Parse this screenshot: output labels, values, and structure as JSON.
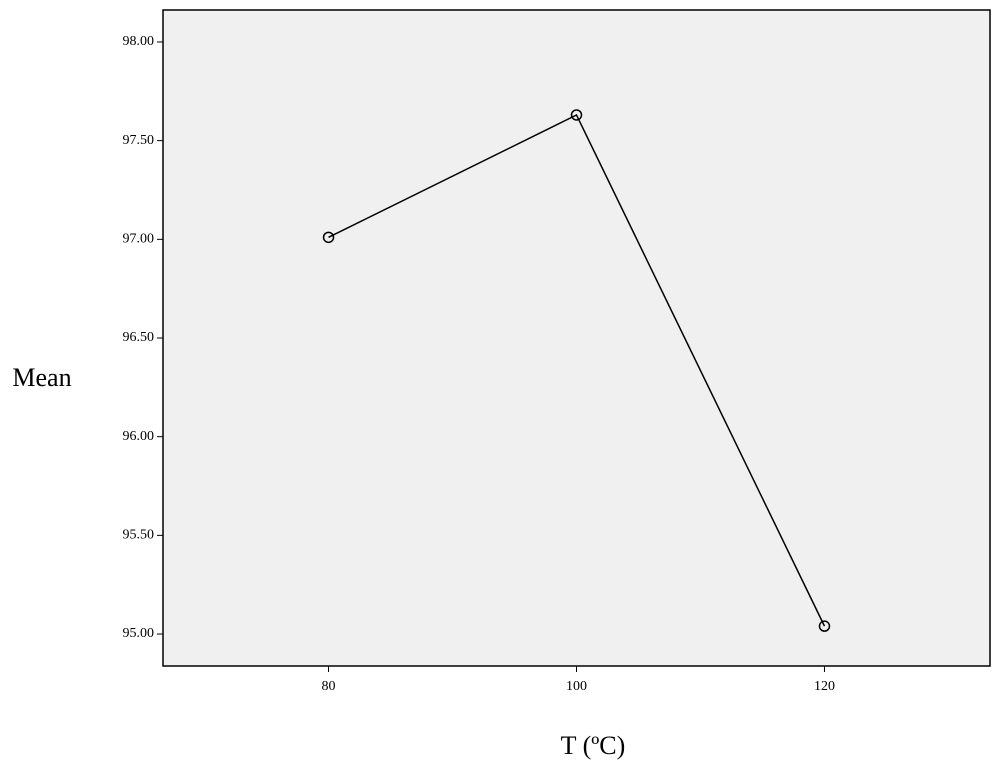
{
  "chart_data": {
    "type": "line",
    "x_label": "T (ºC)",
    "y_label": "Mean",
    "categories": [
      "80",
      "100",
      "120"
    ],
    "values": [
      97.01,
      97.63,
      95.04
    ],
    "color": "#000000",
    "ylim": [
      94.838,
      98.162
    ],
    "yticks": [
      {
        "value": 95,
        "label": "95.00"
      },
      {
        "value": 95.5,
        "label": "95.50"
      },
      {
        "value": 96,
        "label": "96.00"
      },
      {
        "value": 96.5,
        "label": "96.50"
      },
      {
        "value": 97,
        "label": "97.00"
      },
      {
        "value": 97.5,
        "label": "97.50"
      },
      {
        "value": 98,
        "label": "98.00"
      }
    ],
    "grid": false
  }
}
